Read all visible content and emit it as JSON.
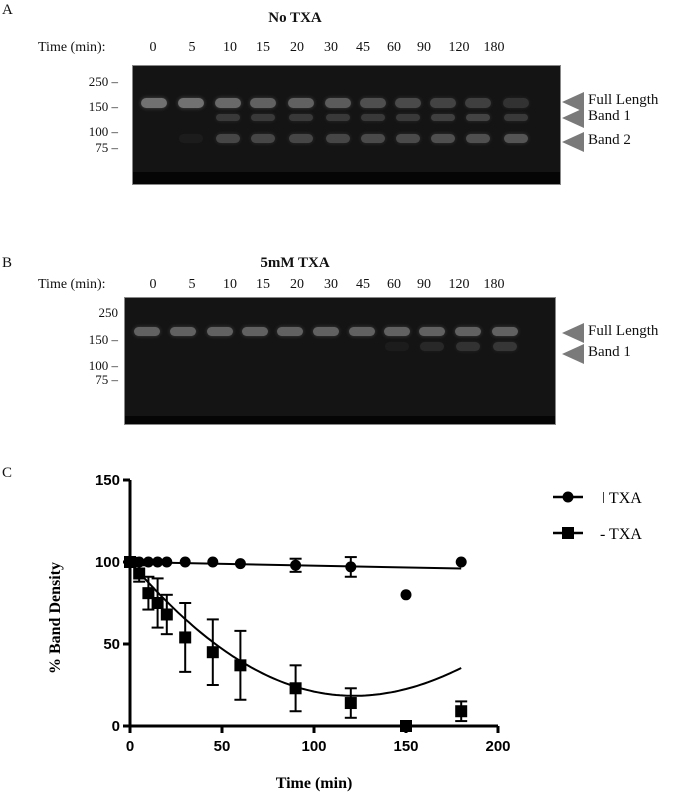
{
  "panel_a": {
    "letter": "A",
    "title": "No TXA",
    "time_label": "Time (min):",
    "lanes": [
      "0",
      "5",
      "10",
      "15",
      "20",
      "30",
      "45",
      "60",
      "90",
      "120",
      "180"
    ],
    "mw_markers": [
      "250",
      "150",
      "100",
      "75"
    ],
    "band_labels": [
      "Full Length",
      "Band 1",
      "Band 2"
    ]
  },
  "panel_b": {
    "letter": "B",
    "title": "5mM TXA",
    "time_label": "Time (min):",
    "lanes": [
      "0",
      "5",
      "10",
      "15",
      "20",
      "30",
      "45",
      "60",
      "90",
      "120",
      "180"
    ],
    "mw_markers": [
      "250",
      "150",
      "100",
      "75"
    ],
    "band_labels": [
      "Full Length",
      "Band 1"
    ]
  },
  "panel_c": {
    "letter": "C"
  },
  "chart_data": {
    "type": "scatter",
    "title": "",
    "xlabel": "Time (min)",
    "ylabel": "% Band Density",
    "xlim": [
      0,
      200
    ],
    "ylim": [
      0,
      150
    ],
    "xticks": [
      "0",
      "50",
      "100",
      "150",
      "200"
    ],
    "yticks": [
      "0",
      "50",
      "100",
      "150"
    ],
    "grid": false,
    "legend_position": "upper right, outside",
    "series": [
      {
        "name": "+ TXA",
        "legend_label": "ǀ TXA",
        "marker": "circle",
        "x": [
          0,
          2.5,
          5,
          10,
          15,
          20,
          30,
          45,
          60,
          90,
          120,
          150,
          180
        ],
        "y": [
          100,
          100,
          100,
          100,
          100,
          100,
          100,
          100,
          99,
          98,
          97,
          80,
          100
        ],
        "error": [
          0,
          0,
          0,
          0,
          0,
          0,
          0,
          0,
          0,
          4,
          6,
          0,
          0
        ],
        "fit": "linear, ~100 to ~96 over 0-180"
      },
      {
        "name": "- TXA",
        "legend_label": "-  TXA",
        "marker": "square",
        "x": [
          0,
          5,
          10,
          15,
          20,
          30,
          45,
          60,
          90,
          120,
          150,
          180
        ],
        "y": [
          100,
          93,
          81,
          75,
          68,
          54,
          45,
          37,
          23,
          14,
          0,
          9
        ],
        "error": [
          0,
          5,
          10,
          15,
          12,
          21,
          20,
          21,
          14,
          9,
          0,
          6
        ],
        "fit": "polynomial decay, minimum ~6 at ~145"
      }
    ]
  }
}
